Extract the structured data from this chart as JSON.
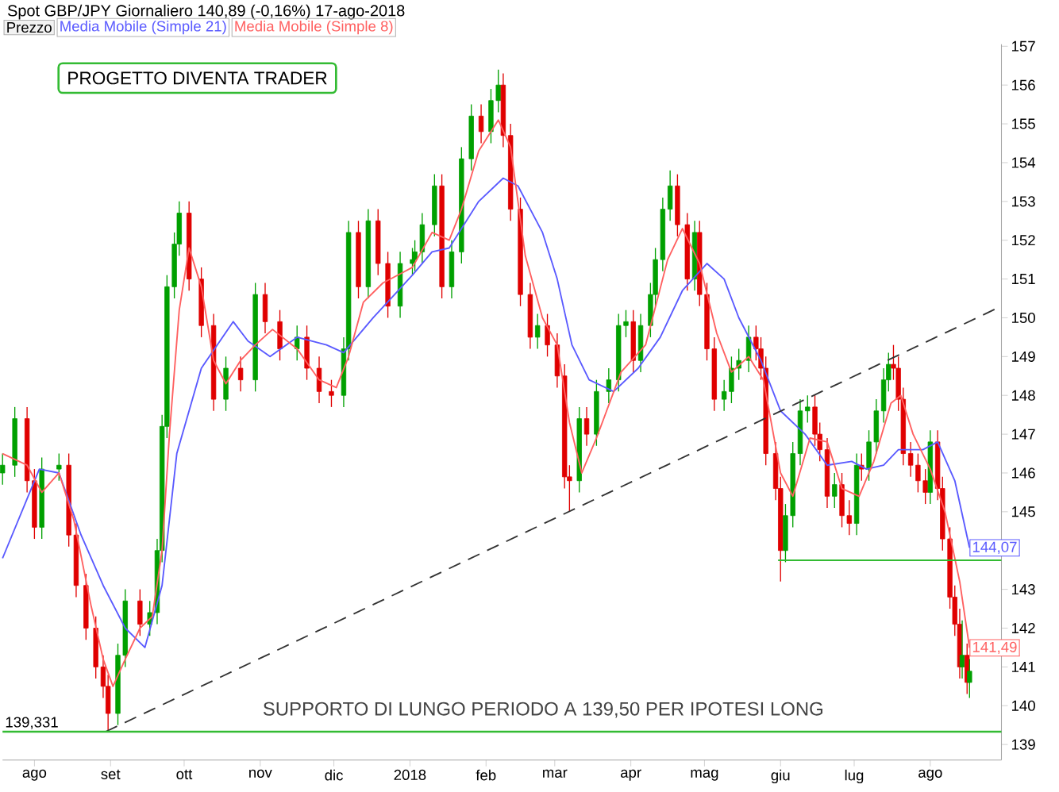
{
  "chart_data": {
    "type": "candlestick",
    "title": "Spot GBP/JPY   Giornaliero   140,89 (-0,16%)   17-ago-2018",
    "annotations": [
      "Prezzo",
      "PROGETTO DIVENTA TRADER",
      "SUPPORTO DI LUNGO PERIODO A 139,50 PER IPOTESI LONG"
    ],
    "legend": "top left",
    "xlim": [
      "2017-07-19",
      "2018-08-30"
    ],
    "xticks": [
      {
        "value": "2017-08-01",
        "label": "ago"
      },
      {
        "value": "2017-09-01",
        "label": "set"
      },
      {
        "value": "2017-10-01",
        "label": "ott"
      },
      {
        "value": "2017-11-01",
        "label": "nov"
      },
      {
        "value": "2017-12-01",
        "label": "dic"
      },
      {
        "value": "2018-01-01",
        "label": "2018"
      },
      {
        "value": "2018-02-01",
        "label": "feb"
      },
      {
        "value": "2018-03-01",
        "label": "mar"
      },
      {
        "value": "2018-04-01",
        "label": "apr"
      },
      {
        "value": "2018-05-01",
        "label": "mag"
      },
      {
        "value": "2018-06-01",
        "label": "giu"
      },
      {
        "value": "2018-07-01",
        "label": "lug"
      },
      {
        "value": "2018-08-01",
        "label": "ago"
      }
    ],
    "ylim": [
      138.6,
      157.05
    ],
    "yticks": [
      139,
      140,
      141,
      142,
      143,
      {
        "value": 144,
        "label": null
      },
      145,
      146,
      147,
      148,
      149,
      150,
      151,
      152,
      153,
      154,
      155,
      156,
      157
    ],
    "x": [
      "2017-07-19",
      "2017-07-24",
      "2017-07-29",
      "2017-08-01",
      "2017-08-04",
      "2017-08-11",
      "2017-08-15",
      "2017-08-18",
      "2017-08-22",
      "2017-08-26",
      "2017-08-29",
      "2017-08-31",
      "2017-09-04",
      "2017-09-07",
      "2017-09-13",
      "2017-09-17",
      "2017-09-20",
      "2017-09-22",
      "2017-09-24",
      "2017-09-27",
      "2017-09-29",
      "2017-10-03",
      "2017-10-08",
      "2017-10-13",
      "2017-10-18",
      "2017-10-24",
      "2017-10-30",
      "2017-11-03",
      "2017-11-09",
      "2017-11-16",
      "2017-11-20",
      "2017-11-25",
      "2017-11-30",
      "2017-12-05",
      "2017-12-07",
      "2017-12-11",
      "2017-12-15",
      "2017-12-19",
      "2017-12-23",
      "2017-12-28",
      "2018-01-02",
      "2018-01-03",
      "2018-01-06",
      "2018-01-11",
      "2018-01-14",
      "2018-01-18",
      "2018-01-22",
      "2018-01-26",
      "2018-01-30",
      "2018-02-03",
      "2018-02-06",
      "2018-02-08",
      "2018-02-11",
      "2018-02-15",
      "2018-02-19",
      "2018-02-22",
      "2018-02-26",
      "2018-03-02",
      "2018-03-05",
      "2018-03-07",
      "2018-03-11",
      "2018-03-14",
      "2018-03-18",
      "2018-03-23",
      "2018-03-27",
      "2018-03-30",
      "2018-04-02",
      "2018-04-05",
      "2018-04-09",
      "2018-04-11",
      "2018-04-14",
      "2018-04-17",
      "2018-04-20",
      "2018-04-24",
      "2018-04-27",
      "2018-04-29",
      "2018-05-02",
      "2018-05-05",
      "2018-05-09",
      "2018-05-12",
      "2018-05-15",
      "2018-05-19",
      "2018-05-22",
      "2018-05-24",
      "2018-05-26",
      "2018-05-30",
      "2018-06-01",
      "2018-06-03",
      "2018-06-06",
      "2018-06-09",
      "2018-06-12",
      "2018-06-15",
      "2018-06-17",
      "2018-06-20",
      "2018-06-23",
      "2018-06-26",
      "2018-06-29",
      "2018-07-02",
      "2018-07-04",
      "2018-07-07",
      "2018-07-10",
      "2018-07-13",
      "2018-07-15",
      "2018-07-17",
      "2018-07-19",
      "2018-07-21",
      "2018-07-24",
      "2018-07-27",
      "2018-07-30",
      "2018-08-01",
      "2018-08-04",
      "2018-08-06",
      "2018-08-09",
      "2018-08-11",
      "2018-08-13",
      "2018-08-14",
      "2018-08-16",
      "2018-08-17"
    ],
    "ohlc": [
      [
        146.0,
        146.5,
        145.7,
        146.2
      ],
      [
        146.2,
        147.7,
        145.9,
        147.4
      ],
      [
        147.4,
        147.7,
        145.5,
        145.8
      ],
      [
        145.8,
        146.1,
        144.3,
        144.6
      ],
      [
        144.6,
        146.4,
        144.3,
        146.1
      ],
      [
        146.1,
        146.5,
        145.8,
        146.2
      ],
      [
        146.2,
        146.5,
        144.1,
        144.4
      ],
      [
        144.4,
        144.7,
        142.8,
        143.1
      ],
      [
        143.1,
        143.4,
        141.7,
        142.0
      ],
      [
        142.0,
        142.3,
        140.7,
        141.0
      ],
      [
        141.0,
        141.3,
        140.2,
        140.5
      ],
      [
        140.5,
        140.8,
        139.33,
        139.8
      ],
      [
        139.8,
        141.6,
        139.5,
        141.3
      ],
      [
        141.3,
        143.0,
        141.0,
        142.7
      ],
      [
        142.7,
        143.0,
        141.8,
        142.1
      ],
      [
        142.1,
        142.7,
        141.8,
        142.4
      ],
      [
        142.4,
        144.3,
        142.1,
        144.0
      ],
      [
        144.0,
        147.5,
        143.7,
        147.2
      ],
      [
        147.2,
        151.1,
        146.9,
        150.8
      ],
      [
        150.8,
        152.2,
        150.5,
        151.9
      ],
      [
        151.9,
        153.0,
        151.6,
        152.7
      ],
      [
        152.7,
        153.0,
        150.7,
        151.0
      ],
      [
        151.0,
        151.3,
        149.5,
        149.8
      ],
      [
        149.8,
        150.1,
        147.6,
        147.9
      ],
      [
        147.9,
        149.0,
        147.6,
        148.7
      ],
      [
        148.7,
        149.0,
        148.1,
        148.4
      ],
      [
        148.4,
        150.9,
        148.1,
        150.6
      ],
      [
        150.6,
        150.9,
        149.6,
        149.9
      ],
      [
        149.9,
        150.2,
        148.9,
        149.2
      ],
      [
        149.2,
        149.8,
        148.9,
        149.5
      ],
      [
        149.5,
        149.8,
        148.4,
        148.7
      ],
      [
        148.7,
        149.0,
        147.8,
        148.1
      ],
      [
        148.1,
        148.4,
        147.7,
        148.0
      ],
      [
        148.0,
        149.5,
        147.7,
        149.2
      ],
      [
        149.2,
        152.5,
        148.9,
        152.2
      ],
      [
        152.2,
        152.5,
        150.5,
        150.8
      ],
      [
        150.8,
        152.8,
        150.5,
        152.5
      ],
      [
        152.5,
        152.8,
        151.1,
        151.4
      ],
      [
        151.4,
        151.7,
        150.0,
        150.3
      ],
      [
        150.3,
        151.7,
        150.0,
        151.4
      ],
      [
        151.4,
        151.8,
        151.1,
        151.5
      ],
      [
        151.5,
        152.0,
        151.2,
        151.7
      ],
      [
        151.7,
        152.7,
        151.4,
        152.4
      ],
      [
        152.4,
        153.7,
        152.1,
        153.4
      ],
      [
        153.4,
        153.7,
        150.5,
        150.8
      ],
      [
        150.8,
        152.0,
        150.5,
        151.7
      ],
      [
        151.7,
        154.4,
        151.4,
        154.1
      ],
      [
        154.1,
        155.5,
        153.8,
        155.2
      ],
      [
        155.2,
        155.5,
        154.5,
        154.8
      ],
      [
        154.8,
        155.9,
        154.5,
        155.6
      ],
      [
        155.6,
        156.4,
        155.3,
        156.0
      ],
      [
        156.0,
        156.3,
        154.4,
        154.7
      ],
      [
        154.7,
        155.0,
        152.5,
        152.8
      ],
      [
        152.8,
        153.1,
        150.3,
        150.6
      ],
      [
        150.6,
        150.9,
        149.2,
        149.5
      ],
      [
        149.5,
        150.1,
        149.2,
        149.8
      ],
      [
        149.8,
        150.1,
        149.0,
        149.3
      ],
      [
        149.3,
        149.6,
        148.2,
        148.5
      ],
      [
        148.5,
        148.8,
        145.6,
        145.9
      ],
      [
        145.9,
        146.2,
        145.0,
        145.8
      ],
      [
        145.8,
        147.7,
        145.5,
        147.4
      ],
      [
        147.4,
        147.7,
        146.7,
        147.0
      ],
      [
        147.0,
        148.4,
        146.7,
        148.1
      ],
      [
        148.1,
        148.7,
        147.8,
        148.4
      ],
      [
        148.4,
        150.1,
        148.1,
        149.8
      ],
      [
        149.8,
        150.2,
        149.5,
        149.9
      ],
      [
        149.9,
        150.2,
        148.6,
        148.9
      ],
      [
        148.9,
        150.1,
        148.6,
        149.8
      ],
      [
        149.8,
        150.9,
        149.5,
        150.6
      ],
      [
        150.6,
        151.8,
        150.3,
        151.5
      ],
      [
        151.5,
        153.1,
        151.2,
        152.8
      ],
      [
        152.8,
        153.8,
        152.5,
        153.4
      ],
      [
        153.4,
        153.7,
        152.1,
        152.4
      ],
      [
        152.4,
        152.7,
        150.7,
        151.0
      ],
      [
        151.0,
        152.5,
        150.7,
        152.2
      ],
      [
        152.2,
        152.5,
        150.3,
        150.6
      ],
      [
        150.6,
        150.9,
        148.9,
        149.2
      ],
      [
        149.2,
        149.5,
        147.6,
        147.9
      ],
      [
        147.9,
        148.4,
        147.6,
        148.1
      ],
      [
        148.1,
        149.0,
        147.8,
        148.7
      ],
      [
        148.7,
        149.2,
        148.4,
        148.9
      ],
      [
        148.9,
        149.8,
        148.6,
        149.5
      ],
      [
        149.5,
        149.8,
        148.9,
        149.2
      ],
      [
        149.2,
        149.5,
        148.4,
        148.7
      ],
      [
        148.7,
        149.0,
        146.2,
        146.5
      ],
      [
        146.5,
        146.8,
        145.3,
        145.6
      ],
      [
        145.6,
        145.9,
        143.2,
        144.0
      ],
      [
        144.0,
        145.2,
        143.7,
        144.9
      ],
      [
        144.9,
        146.8,
        144.6,
        146.5
      ],
      [
        146.5,
        147.9,
        146.2,
        147.6
      ],
      [
        147.6,
        148.0,
        147.3,
        147.7
      ],
      [
        147.7,
        148.0,
        146.7,
        147.0
      ],
      [
        147.0,
        147.3,
        146.3,
        146.6
      ],
      [
        146.6,
        146.9,
        145.1,
        145.4
      ],
      [
        145.4,
        146.0,
        145.1,
        145.7
      ],
      [
        145.7,
        146.0,
        144.6,
        144.9
      ],
      [
        144.9,
        145.3,
        144.4,
        144.7
      ],
      [
        144.7,
        146.5,
        144.4,
        146.2
      ],
      [
        146.2,
        146.5,
        145.8,
        146.1
      ],
      [
        146.1,
        147.1,
        145.8,
        146.8
      ],
      [
        146.8,
        147.9,
        146.5,
        147.6
      ],
      [
        147.6,
        148.7,
        147.3,
        148.4
      ],
      [
        148.4,
        149.1,
        148.1,
        148.8
      ],
      [
        148.8,
        149.3,
        148.4,
        148.7
      ],
      [
        148.7,
        149.0,
        147.6,
        147.9
      ],
      [
        147.9,
        148.2,
        146.2,
        146.5
      ],
      [
        146.5,
        146.8,
        145.9,
        146.2
      ],
      [
        146.2,
        146.5,
        145.5,
        145.8
      ],
      [
        145.8,
        146.1,
        145.2,
        145.5
      ],
      [
        145.5,
        147.1,
        145.2,
        146.8
      ],
      [
        146.8,
        147.1,
        145.3,
        145.6
      ],
      [
        145.6,
        145.9,
        144.0,
        144.3
      ],
      [
        144.3,
        144.6,
        142.5,
        142.8
      ],
      [
        142.8,
        143.1,
        141.8,
        142.1
      ],
      [
        142.1,
        142.5,
        140.7,
        141.0
      ],
      [
        141.0,
        142.2,
        140.7,
        141.3
      ],
      [
        141.3,
        141.6,
        140.3,
        140.6
      ],
      [
        140.6,
        141.2,
        140.2,
        140.89
      ]
    ],
    "series": [
      {
        "type": "line",
        "name": "Media Mobile (Simple 21)",
        "color": "#5a5aff",
        "x": [
          "2017-07-19",
          "2017-08-03",
          "2017-08-11",
          "2017-08-20",
          "2017-08-29",
          "2017-09-07",
          "2017-09-15",
          "2017-09-22",
          "2017-09-28",
          "2017-10-08",
          "2017-10-21",
          "2017-10-27",
          "2017-11-05",
          "2017-11-16",
          "2017-11-28",
          "2017-12-05",
          "2017-12-17",
          "2018-01-02",
          "2018-01-10",
          "2018-01-17",
          "2018-01-29",
          "2018-02-08",
          "2018-02-14",
          "2018-02-24",
          "2018-03-02",
          "2018-03-08",
          "2018-03-15",
          "2018-03-25",
          "2018-04-04",
          "2018-04-13",
          "2018-04-22",
          "2018-05-02",
          "2018-05-09",
          "2018-05-15",
          "2018-05-24",
          "2018-06-01",
          "2018-06-11",
          "2018-06-20",
          "2018-06-30",
          "2018-07-06",
          "2018-07-13",
          "2018-07-19",
          "2018-07-29",
          "2018-08-04",
          "2018-08-11",
          "2018-08-17"
        ],
        "values": [
          143.8,
          146.1,
          146.0,
          144.4,
          143.1,
          142.0,
          141.5,
          143.1,
          146.5,
          148.7,
          149.9,
          149.4,
          149.0,
          149.5,
          149.3,
          149.1,
          150.0,
          151.1,
          151.7,
          151.8,
          153.0,
          153.6,
          153.4,
          152.2,
          151.0,
          149.3,
          148.4,
          148.1,
          148.7,
          149.5,
          150.7,
          151.4,
          151.0,
          150.0,
          148.9,
          147.6,
          147.0,
          146.2,
          146.3,
          146.1,
          146.2,
          146.6,
          146.6,
          146.8,
          145.8,
          144.07
        ],
        "value_labels": [
          null,
          null,
          null,
          null,
          null,
          null,
          null,
          null,
          null,
          null,
          null,
          null,
          null,
          null,
          null,
          null,
          null,
          null,
          null,
          null,
          null,
          null,
          null,
          null,
          null,
          null,
          null,
          null,
          null,
          null,
          null,
          null,
          null,
          null,
          null,
          null,
          null,
          null,
          null,
          null,
          null,
          null,
          null,
          null,
          null,
          "144,07"
        ]
      },
      {
        "type": "line",
        "name": "Media Mobile (Simple 8)",
        "color": "#ff6060",
        "x": [
          "2017-07-19",
          "2017-07-29",
          "2017-08-04",
          "2017-08-11",
          "2017-08-17",
          "2017-08-24",
          "2017-08-29",
          "2017-09-02",
          "2017-09-07",
          "2017-09-13",
          "2017-09-18",
          "2017-09-22",
          "2017-09-25",
          "2017-09-29",
          "2017-10-03",
          "2017-10-08",
          "2017-10-13",
          "2017-10-18",
          "2017-10-24",
          "2017-10-30",
          "2017-11-06",
          "2017-11-16",
          "2017-11-25",
          "2017-12-02",
          "2017-12-07",
          "2017-12-13",
          "2017-12-21",
          "2018-01-02",
          "2018-01-10",
          "2018-01-17",
          "2018-01-22",
          "2018-01-29",
          "2018-02-06",
          "2018-02-11",
          "2018-02-17",
          "2018-02-24",
          "2018-03-02",
          "2018-03-07",
          "2018-03-12",
          "2018-03-18",
          "2018-03-28",
          "2018-04-07",
          "2018-04-16",
          "2018-04-22",
          "2018-04-29",
          "2018-05-06",
          "2018-05-12",
          "2018-05-19",
          "2018-05-25",
          "2018-06-01",
          "2018-06-06",
          "2018-06-13",
          "2018-06-20",
          "2018-06-26",
          "2018-07-03",
          "2018-07-09",
          "2018-07-16",
          "2018-07-20",
          "2018-07-25",
          "2018-08-01",
          "2018-08-07",
          "2018-08-13",
          "2018-08-17"
        ],
        "values": [
          146.5,
          146.2,
          145.5,
          146.0,
          144.8,
          142.6,
          141.2,
          140.5,
          141.2,
          142.0,
          142.3,
          144.0,
          147.0,
          150.2,
          151.8,
          150.8,
          148.9,
          148.3,
          148.9,
          149.3,
          149.7,
          149.2,
          148.4,
          148.2,
          149.0,
          150.4,
          150.9,
          151.3,
          152.2,
          152.0,
          152.8,
          154.3,
          155.1,
          154.4,
          151.6,
          150.0,
          149.3,
          147.3,
          146.0,
          146.9,
          148.6,
          149.3,
          151.5,
          152.3,
          151.4,
          149.6,
          148.6,
          149.0,
          148.4,
          146.0,
          145.4,
          146.9,
          146.8,
          145.6,
          145.4,
          146.3,
          147.8,
          148.0,
          147.0,
          146.1,
          145.0,
          143.2,
          141.49
        ],
        "value_labels": [
          null,
          null,
          null,
          null,
          null,
          null,
          null,
          null,
          null,
          null,
          null,
          null,
          null,
          null,
          null,
          null,
          null,
          null,
          null,
          null,
          null,
          null,
          null,
          null,
          null,
          null,
          null,
          null,
          null,
          null,
          null,
          null,
          null,
          null,
          null,
          null,
          null,
          null,
          null,
          null,
          null,
          null,
          null,
          null,
          null,
          null,
          null,
          null,
          null,
          null,
          null,
          null,
          null,
          null,
          null,
          null,
          null,
          null,
          null,
          null,
          null,
          null,
          "141,49"
        ]
      },
      {
        "type": "line",
        "color": "#333333",
        "line_style": "dashed",
        "x": [
          "2017-08-30",
          "2018-08-30"
        ],
        "values": [
          139.33,
          150.3
        ]
      },
      {
        "type": "line",
        "color": "#33bb33",
        "x": [
          "2018-05-31",
          "2018-08-30"
        ],
        "values": [
          143.75,
          143.75
        ]
      }
    ],
    "ref_lines": [
      {
        "axis": "y",
        "value": 139.331,
        "label": "139,331",
        "color": "#33bb33"
      }
    ]
  }
}
